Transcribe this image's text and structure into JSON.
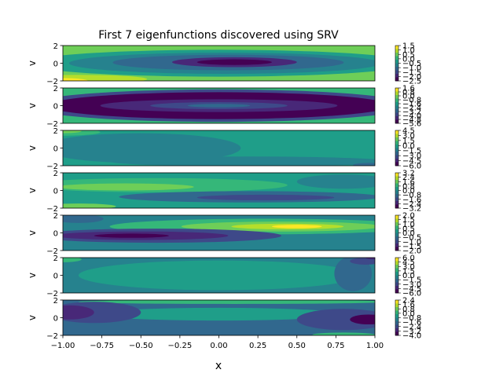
{
  "chart_data": {
    "type": "heatmap",
    "title": "First 7 eigenfunctions discovered using SRV",
    "xlabel": "x",
    "ylabel": "v",
    "xlim": [
      -1.0,
      1.0
    ],
    "ylim": [
      -2,
      2
    ],
    "x_ticks": [
      "−1.00",
      "−0.75",
      "−0.50",
      "−0.25",
      "0.00",
      "0.25",
      "0.50",
      "0.75",
      "1.00"
    ],
    "y_ticks": [
      "−2",
      "0",
      "2"
    ],
    "colormap": "viridis",
    "panels": [
      {
        "index": 1,
        "colorbar_ticks": [
          "1.5",
          "1.0",
          "0.5",
          "0.0",
          "−0.5",
          "−1.0",
          "−1.5",
          "−2.0",
          "−2.5"
        ]
      },
      {
        "index": 2,
        "colorbar_ticks": [
          "1.6",
          "0.8",
          "0.0",
          "−0.8",
          "−1.6",
          "−2.4",
          "−3.2",
          "−4.0",
          "−4.8",
          "−5.6"
        ]
      },
      {
        "index": 3,
        "colorbar_ticks": [
          "4.5",
          "3.0",
          "1.5",
          "0.0",
          "−1.5",
          "−3.0",
          "−4.5",
          "−6.0"
        ]
      },
      {
        "index": 4,
        "colorbar_ticks": [
          "3.2",
          "2.4",
          "1.6",
          "0.8",
          "0.0",
          "−0.8",
          "−1.6",
          "−2.4",
          "−3.2"
        ]
      },
      {
        "index": 5,
        "colorbar_ticks": [
          "2.0",
          "1.5",
          "1.0",
          "0.5",
          "0.0",
          "−0.5",
          "−1.0",
          "−1.5",
          "−2.0"
        ]
      },
      {
        "index": 6,
        "colorbar_ticks": [
          "6.0",
          "4.5",
          "3.0",
          "1.5",
          "0.0",
          "−1.5",
          "−3.0",
          "−4.5",
          "−6.0"
        ]
      },
      {
        "index": 7,
        "colorbar_ticks": [
          "2.4",
          "1.6",
          "0.8",
          "0.0",
          "−0.8",
          "−1.6",
          "−2.4",
          "−3.2",
          "−4.0"
        ]
      }
    ],
    "colors": {
      "c0": "#440154",
      "c1": "#482878",
      "c2": "#3e4989",
      "c3": "#31688e",
      "c4": "#26828e",
      "c5": "#1f9e89",
      "c6": "#35b779",
      "c7": "#6ece58",
      "c8": "#b5de2b",
      "c9": "#fde725"
    }
  }
}
